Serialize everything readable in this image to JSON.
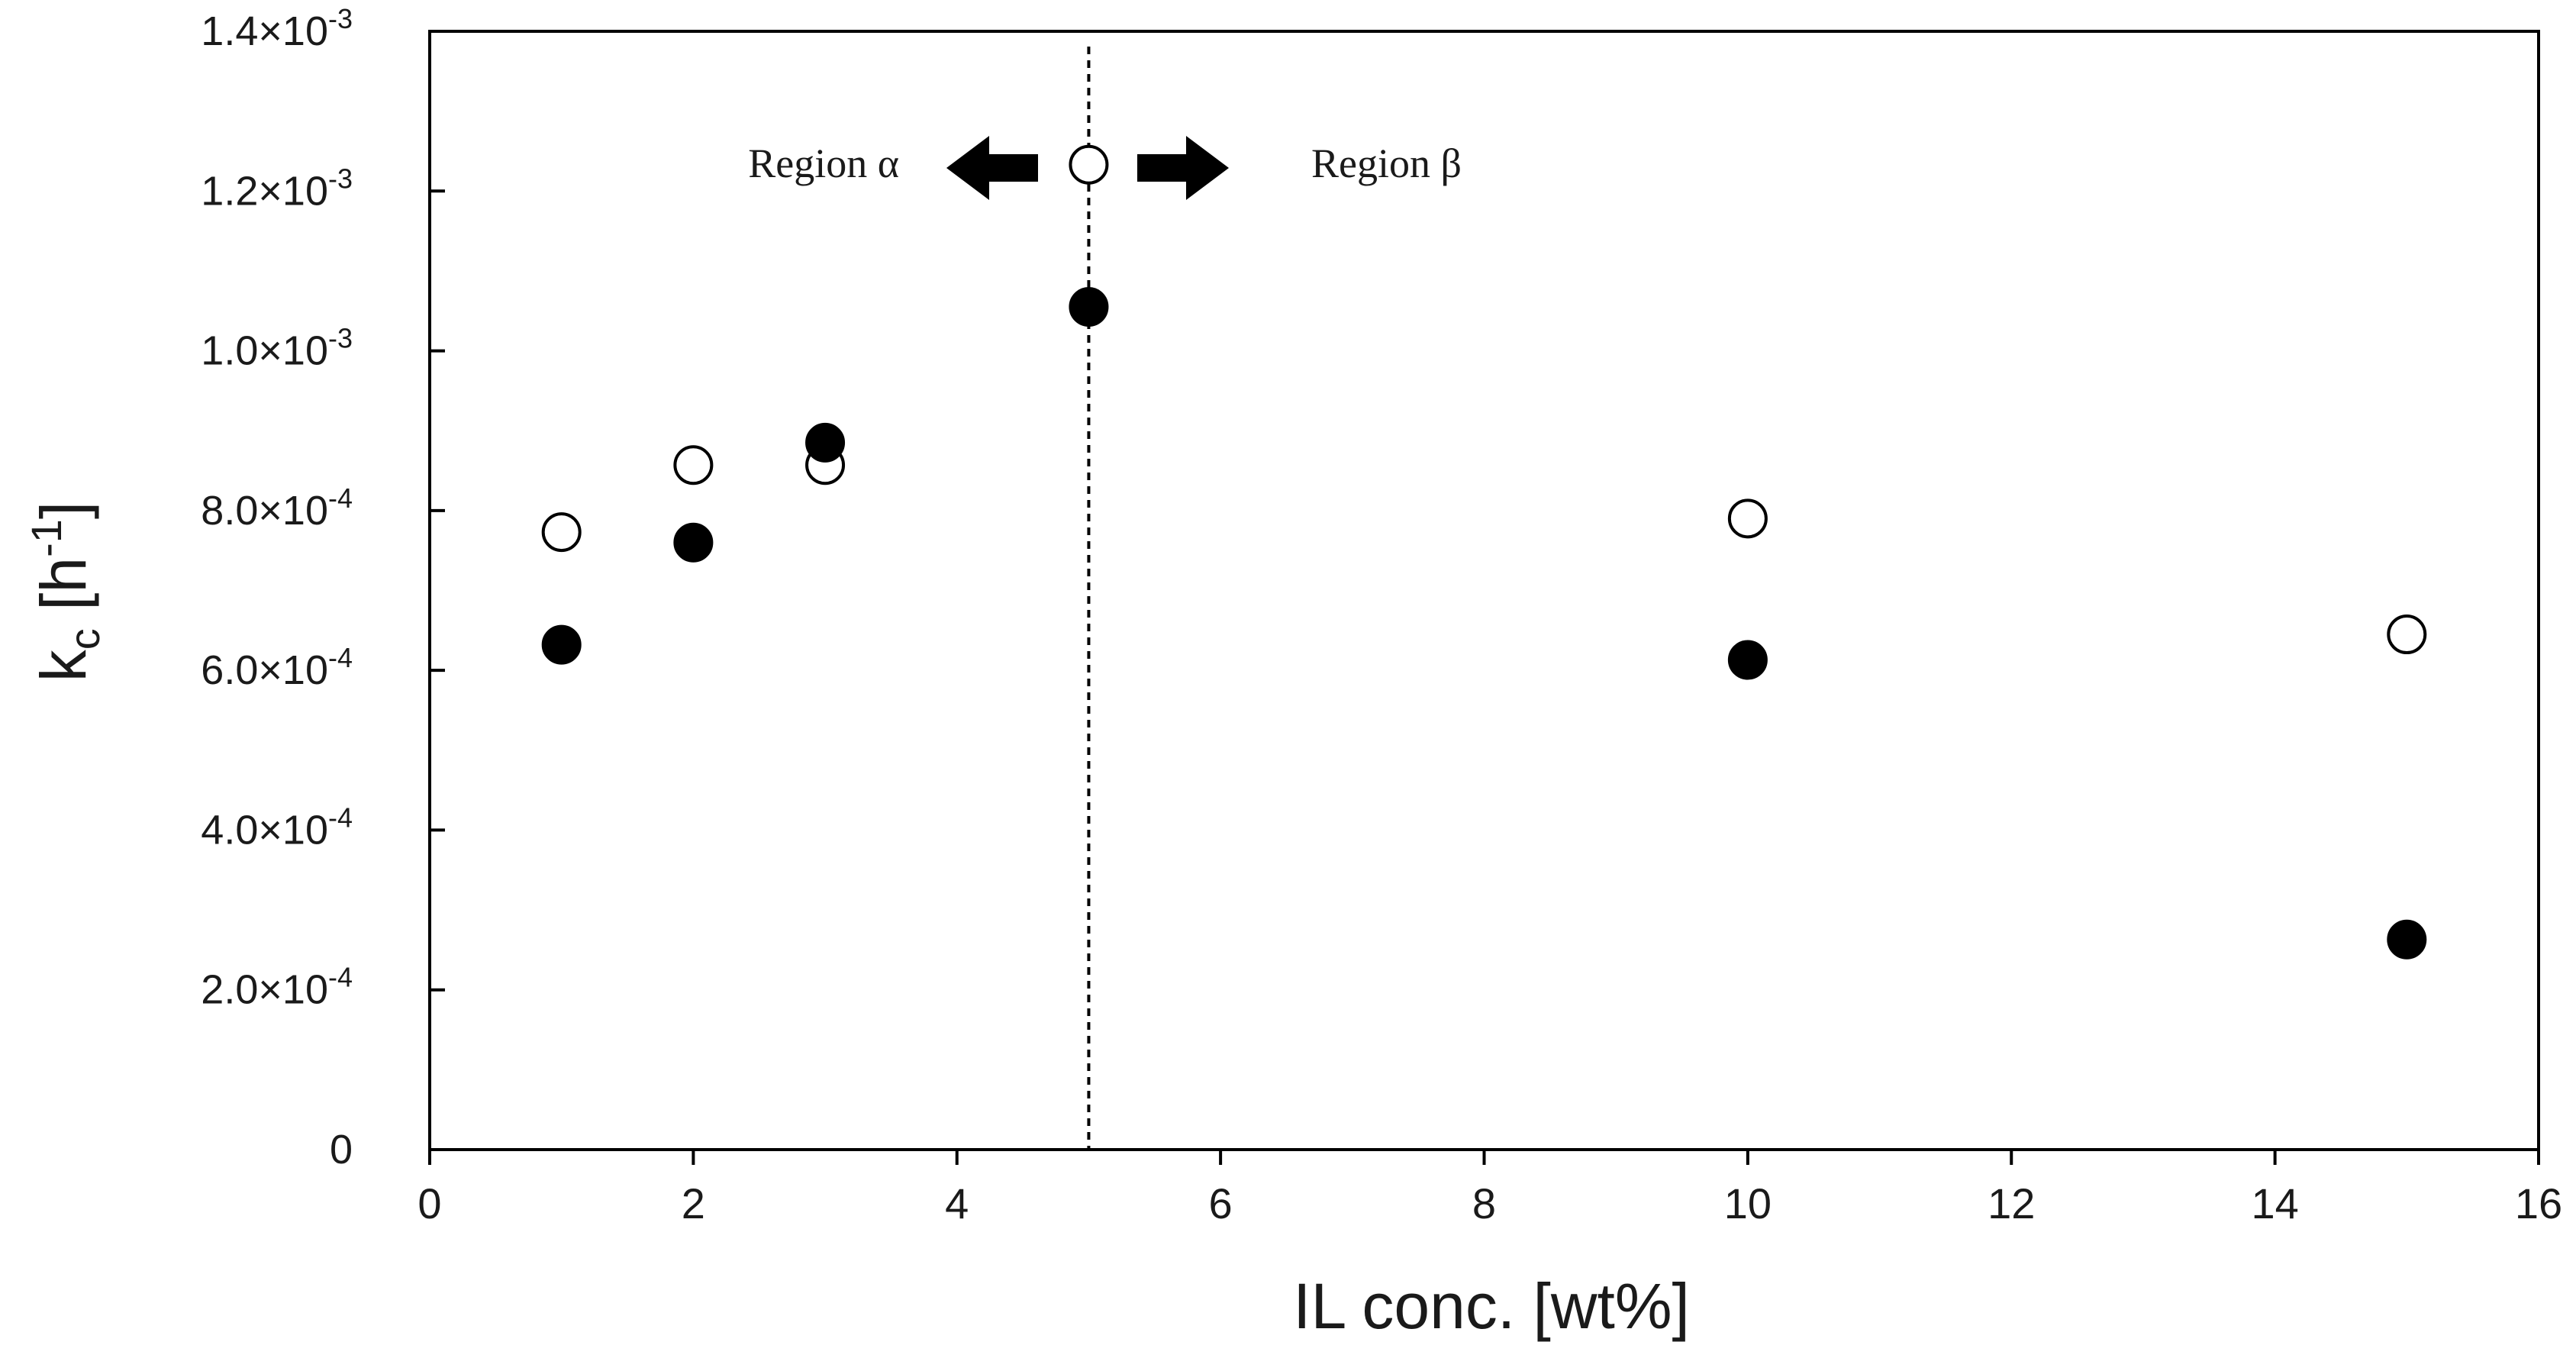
{
  "chart_data": {
    "type": "scatter",
    "title": "",
    "xlabel": "IL conc. [wt%]",
    "ylabel": {
      "base": "k",
      "sub": "c",
      "open": " [h",
      "sup": "-1",
      "close": "]"
    },
    "xlim": [
      0,
      16
    ],
    "ylim": [
      0,
      0.0014
    ],
    "x_ticks": [
      "0",
      "2",
      "4",
      "6",
      "8",
      "10",
      "12",
      "14",
      "16"
    ],
    "y_ticks": [
      {
        "value": 0,
        "mantissa": "0",
        "exp": ""
      },
      {
        "value": 0.0002,
        "mantissa": "2.0",
        "exp": "-4"
      },
      {
        "value": 0.0004,
        "mantissa": "4.0",
        "exp": "-4"
      },
      {
        "value": 0.0006,
        "mantissa": "6.0",
        "exp": "-4"
      },
      {
        "value": 0.0008,
        "mantissa": "8.0",
        "exp": "-4"
      },
      {
        "value": 0.001,
        "mantissa": "1.0",
        "exp": "-3"
      },
      {
        "value": 0.0012,
        "mantissa": "1.2",
        "exp": "-3"
      },
      {
        "value": 0.0014,
        "mantissa": "1.4",
        "exp": "-3"
      }
    ],
    "y_tick_multiplier": "×10",
    "grid": false,
    "series": [
      {
        "marker": "filled-circle",
        "color": "#000000",
        "points": [
          {
            "x": 1,
            "y": 0.000632
          },
          {
            "x": 2,
            "y": 0.00076
          },
          {
            "x": 3,
            "y": 0.000885
          },
          {
            "x": 5,
            "y": 0.001055
          },
          {
            "x": 10,
            "y": 0.000613
          },
          {
            "x": 15,
            "y": 0.000263
          }
        ]
      },
      {
        "marker": "open-circle",
        "color": "#000000",
        "points": [
          {
            "x": 1,
            "y": 0.000773
          },
          {
            "x": 2,
            "y": 0.000857
          },
          {
            "x": 3,
            "y": 0.000857
          },
          {
            "x": 5,
            "y": 0.001233
          },
          {
            "x": 10,
            "y": 0.00079
          },
          {
            "x": 15,
            "y": 0.000645
          }
        ]
      }
    ],
    "annotations": {
      "divider_x": 5,
      "region_left_label": "Region α",
      "region_right_label": "Region β"
    }
  }
}
